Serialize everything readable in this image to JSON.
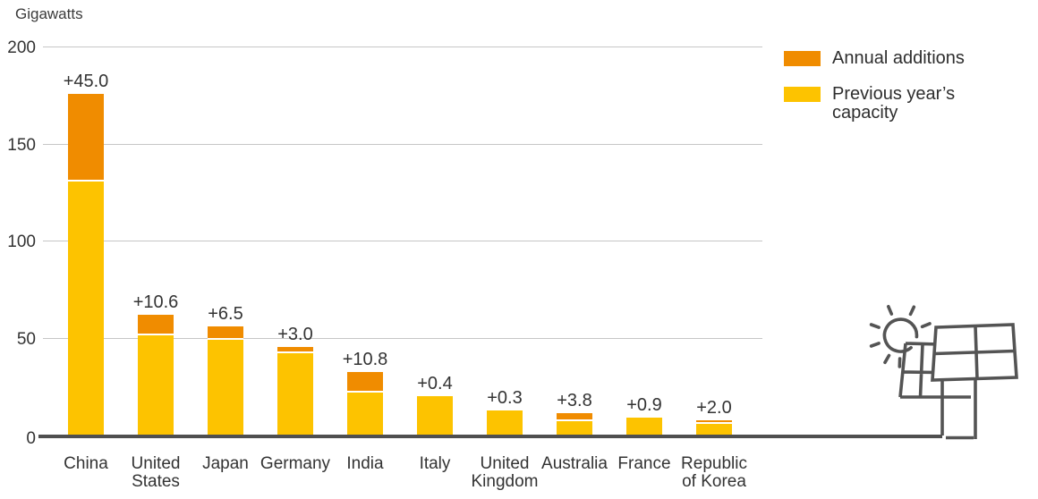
{
  "chart_data": {
    "type": "bar",
    "stacked": true,
    "title": "",
    "ylabel": "Gigawatts",
    "xlabel": "",
    "ylim": [
      0,
      200
    ],
    "yticks": [
      0,
      50,
      100,
      150,
      200
    ],
    "grid": true,
    "legend_position": "top-right",
    "categories": [
      "China",
      "United States",
      "Japan",
      "Germany",
      "India",
      "Italy",
      "United Kingdom",
      "Australia",
      "France",
      "Republic of Korea"
    ],
    "series": [
      {
        "name": "Previous year’s capacity",
        "color": "#FDC300",
        "values": [
          131.1,
          51.6,
          49.5,
          42.4,
          22.1,
          19.7,
          12.7,
          7.5,
          8.1,
          5.9
        ]
      },
      {
        "name": "Annual additions",
        "color": "#F08C00",
        "values": [
          45.0,
          10.6,
          6.5,
          3.0,
          10.8,
          0.4,
          0.3,
          3.8,
          0.9,
          2.0
        ]
      }
    ],
    "bar_labels": [
      "+45.0",
      "+10.6",
      "+6.5",
      "+3.0",
      "+10.8",
      "+0.4",
      "+0.3",
      "+3.8",
      "+0.9",
      "+2.0"
    ]
  },
  "legend": [
    {
      "label": "Annual additions",
      "color": "#F08C00"
    },
    {
      "label": "Previous year’s capacity",
      "color": "#FDC300"
    }
  ],
  "icon": {
    "name": "solar-panel-with-sun",
    "color": "#545454"
  },
  "axis": {
    "color": "#4f4f4f",
    "gridline_color": "#c6c6c6"
  }
}
